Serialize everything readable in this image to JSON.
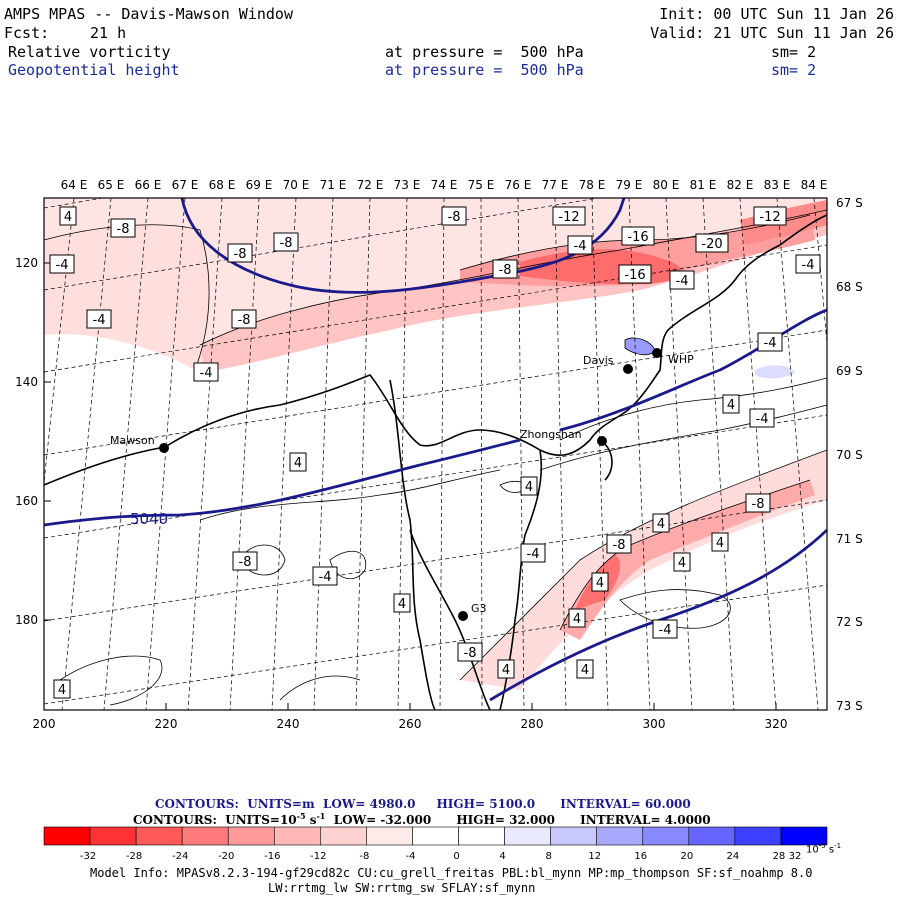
{
  "header": {
    "title": "AMPS MPAS -- Davis-Mawson Window",
    "forecast_label": "Fcst:",
    "forecast_hours": "21 h",
    "init": "Init: 00 UTC Sun 11 Jan 26",
    "valid": "Valid: 21 UTC Sun 11 Jan 26",
    "field1_name": "Relative vorticity",
    "field1_level": "at pressure =  500 hPa",
    "field1_smooth": "sm= 2",
    "field2_name": "Geopotential height",
    "field2_level": "at pressure =  500 hPa",
    "field2_smooth": "sm= 2"
  },
  "map": {
    "longitude_labels": [
      "64 E",
      "65 E",
      "66 E",
      "67 E",
      "68 E",
      "69 E",
      "70 E",
      "71 E",
      "72 E",
      "73 E",
      "74 E",
      "75 E",
      "76 E",
      "77 E",
      "78 E",
      "79 E",
      "80 E",
      "81 E",
      "82 E",
      "83 E",
      "84 E"
    ],
    "latitude_labels": [
      "67 S",
      "68 S",
      "69 S",
      "70 S",
      "71 S",
      "72 S",
      "73 S"
    ],
    "x_ticks": [
      "200",
      "220",
      "240",
      "260",
      "280",
      "300",
      "320"
    ],
    "y_ticks": [
      "120",
      "140",
      "160",
      "180"
    ],
    "stations": [
      "Mawson",
      "Davis",
      "WHP",
      "Zhongshan",
      "G3"
    ],
    "height_label": "5040",
    "vorticity_labels": [
      "4",
      "-8",
      "-4",
      "-8",
      "-4",
      "-8",
      "-8",
      "-12",
      "-12",
      "-16",
      "-20",
      "-8",
      "-4",
      "-16",
      "-4",
      "-4",
      "-8",
      "-4",
      "-4",
      "4",
      "-4",
      "4",
      "4",
      "4",
      "-8",
      "-4",
      "-4",
      "-8",
      "4",
      "4",
      "-8",
      "4",
      "4",
      "4",
      "-4",
      "-8",
      "4",
      "4",
      "4"
    ]
  },
  "contour_info": {
    "line1_label": "CONTOURS:  UNITS=m  LOW=",
    "line1_low": "4980.0",
    "line1_high_label": "HIGH=",
    "line1_high": "5100.0",
    "line1_interval_label": "INTERVAL=",
    "line1_interval": "60.000",
    "line2_label": "CONTOURS:  UNITS=10",
    "line2_exp": "-5",
    "line2_unit": " s",
    "line2_unit_exp": "-1",
    "line2_low_label": "LOW=",
    "line2_low": "-32.000",
    "line2_high_label": "HIGH=",
    "line2_high": "32.000",
    "line2_interval_label": "INTERVAL=",
    "line2_interval": "4.0000"
  },
  "colorbar": {
    "colors": [
      "#ff0000",
      "#ff3333",
      "#ff5a5a",
      "#ff7a7a",
      "#ff9a9a",
      "#ffb8b8",
      "#ffd2d2",
      "#ffeaea",
      "#ffffff",
      "#ffffff",
      "#eaeaff",
      "#c8c8ff",
      "#a8a8ff",
      "#8888ff",
      "#6666ff",
      "#3f3fff",
      "#0000ff"
    ],
    "labels": [
      "-32",
      "-28",
      "-24",
      "-20",
      "-16",
      "-12",
      "-8",
      "-4",
      "0",
      "4",
      "8",
      "12",
      "16",
      "20",
      "24",
      "28",
      "32"
    ],
    "unit": "10",
    "unit_exp": "-5",
    "unit_s": "s",
    "unit_s_exp": "-1"
  },
  "footer": {
    "model_info": "Model Info: MPASv8.2.3-194-gf29cd82c CU:cu_grell_freitas PBL:bl_mynn MP:mp_thompson SF:sf_noahmp 8.0",
    "model_info2": "LW:rrtmg_lw SW:rrtmg_sw SFLAY:sf_mynn"
  }
}
